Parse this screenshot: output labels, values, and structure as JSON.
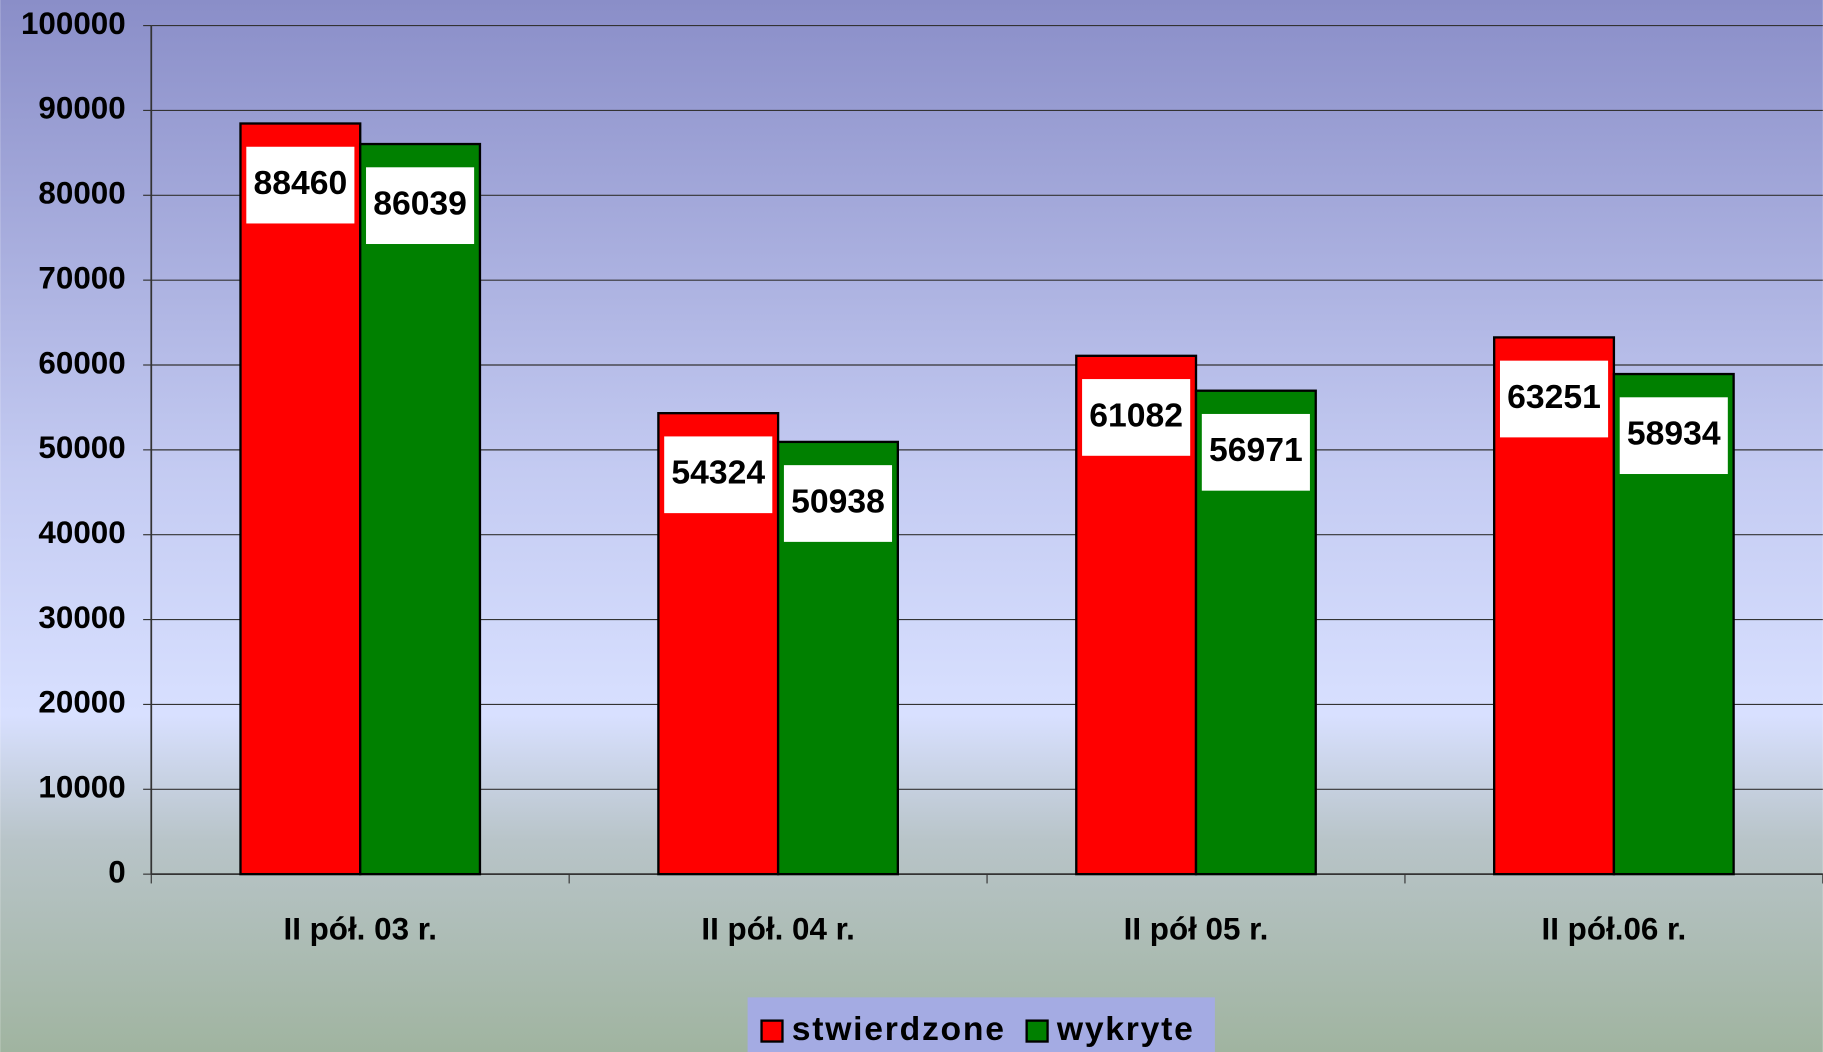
{
  "chart_data": {
    "type": "bar",
    "categories": [
      "II pół. 03 r.",
      "II pół. 04 r.",
      "II pół 05 r.",
      "II pół.06 r."
    ],
    "series": [
      {
        "name": "stwierdzone",
        "color": "#ff0000",
        "values": [
          88460,
          54324,
          61082,
          63251
        ]
      },
      {
        "name": "wykryte",
        "color": "#008000",
        "values": [
          86039,
          50938,
          56971,
          58934
        ]
      }
    ],
    "ylim": [
      0,
      100000
    ],
    "yticks": [
      0,
      10000,
      20000,
      30000,
      40000,
      50000,
      60000,
      70000,
      80000,
      90000,
      100000
    ],
    "grid": true,
    "legend": "bottom"
  }
}
